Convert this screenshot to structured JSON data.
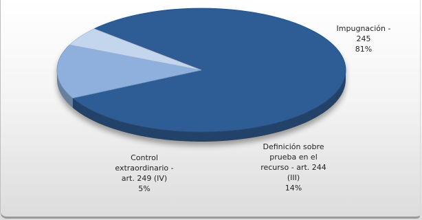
{
  "chart_data": {
    "type": "pie",
    "categories": [
      "Impugnación",
      "Definición sobre prueba en el recurso - art. 244 (III)",
      "Control extraordinario - art. 249 (IV)"
    ],
    "values": [
      245,
      43,
      15
    ],
    "percents": [
      81,
      14,
      5
    ],
    "colors": [
      "#2f5b94",
      "#8fb0dc",
      "#c4d6ee"
    ],
    "labels": [
      [
        "Impugnación -",
        "245",
        "81%"
      ],
      [
        "Definición sobre",
        "prueba en el",
        "recurso - art. 244",
        "(III)",
        "14%"
      ],
      [
        "Control",
        "extraordinario -",
        "art. 249 (IV)",
        "5%"
      ]
    ]
  }
}
